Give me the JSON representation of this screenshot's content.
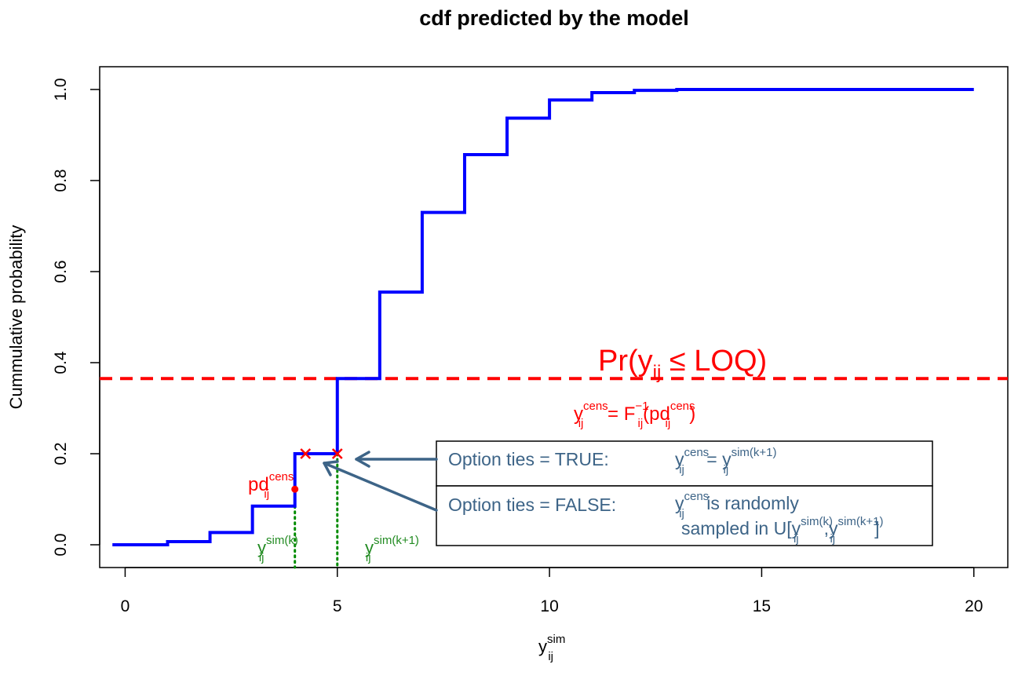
{
  "chart_data": {
    "type": "line",
    "title": "cdf predicted by the model",
    "xlabel": {
      "main": "y",
      "sub": "ij",
      "sup": "sim"
    },
    "ylabel": "Cummulative probability",
    "xlim": [
      -0.6,
      20.8
    ],
    "ylim": [
      -0.05,
      1.05
    ],
    "xticks": [
      0,
      5,
      10,
      15,
      20
    ],
    "yticks": [
      0.0,
      0.2,
      0.4,
      0.6,
      0.8,
      1.0
    ],
    "xtick_labels": [
      "0",
      "5",
      "10",
      "15",
      "20"
    ],
    "ytick_labels": [
      "0.0",
      "0.2",
      "0.4",
      "0.6",
      "0.8",
      "1.0"
    ],
    "series": [
      {
        "color": "#0000ff",
        "style": "step",
        "x": [
          -0.3,
          1,
          2,
          3,
          4,
          5,
          6,
          7,
          8,
          9,
          10,
          11,
          12,
          13,
          14,
          20
        ],
        "y": [
          0.0,
          0.007,
          0.027,
          0.085,
          0.2,
          0.365,
          0.555,
          0.73,
          0.857,
          0.937,
          0.977,
          0.993,
          0.998,
          1.0,
          1.0,
          1.0
        ]
      }
    ],
    "hline": {
      "y": 0.365,
      "color": "#ff0000",
      "style": "dashed"
    },
    "vlines": [
      {
        "x": 4,
        "y_top": 0.085,
        "color": "#008b00",
        "style": "dotted"
      },
      {
        "x": 5,
        "y_top": 0.2,
        "color": "#008b00",
        "style": "dotted"
      }
    ],
    "crosses": [
      {
        "x": 4.25,
        "y": 0.2
      },
      {
        "x": 5,
        "y": 0.2
      }
    ],
    "point": {
      "x": 4,
      "y": 0.122
    },
    "annotations": {
      "loq": {
        "text_before": "Pr(y",
        "sub": "ij",
        "text_after": " ≤ LOQ)"
      },
      "inverse": {
        "y": "y",
        "sub1": "ij",
        "sup1": "cens",
        "mid": " = F",
        "sub2": "ij",
        "sup2": "−1",
        "pd": "(pd",
        "sub3": "ij",
        "sup3": "cens",
        "close": ")"
      },
      "pd": {
        "main": "pd",
        "sub": "ij",
        "sup": "cens"
      },
      "left_label": {
        "main": "y",
        "sub": "ij",
        "sup": "sim(k)"
      },
      "right_label": {
        "main": "y",
        "sub": "ij",
        "sup": "sim(k+1)"
      }
    },
    "legend_box": {
      "rows": [
        {
          "label": "Option ties = TRUE:",
          "eq": {
            "y1": "y",
            "sub1": "ij",
            "sup1": "cens",
            "eq": " = ",
            "y2": "y",
            "sub2": "ij",
            "sup2": "sim(k+1)"
          }
        },
        {
          "label": "Option ties = FALSE:",
          "line1": {
            "y": "y",
            "sub": "ij",
            "sup": "cens",
            "text": " is randomly"
          },
          "line2": {
            "text": "sampled in U[y",
            "sub1": "ij",
            "sup1": "sim(k)",
            "comma": ",y",
            "sub2": "ij",
            "sup2": "sim(k+1)",
            "close": "]"
          }
        }
      ]
    }
  }
}
